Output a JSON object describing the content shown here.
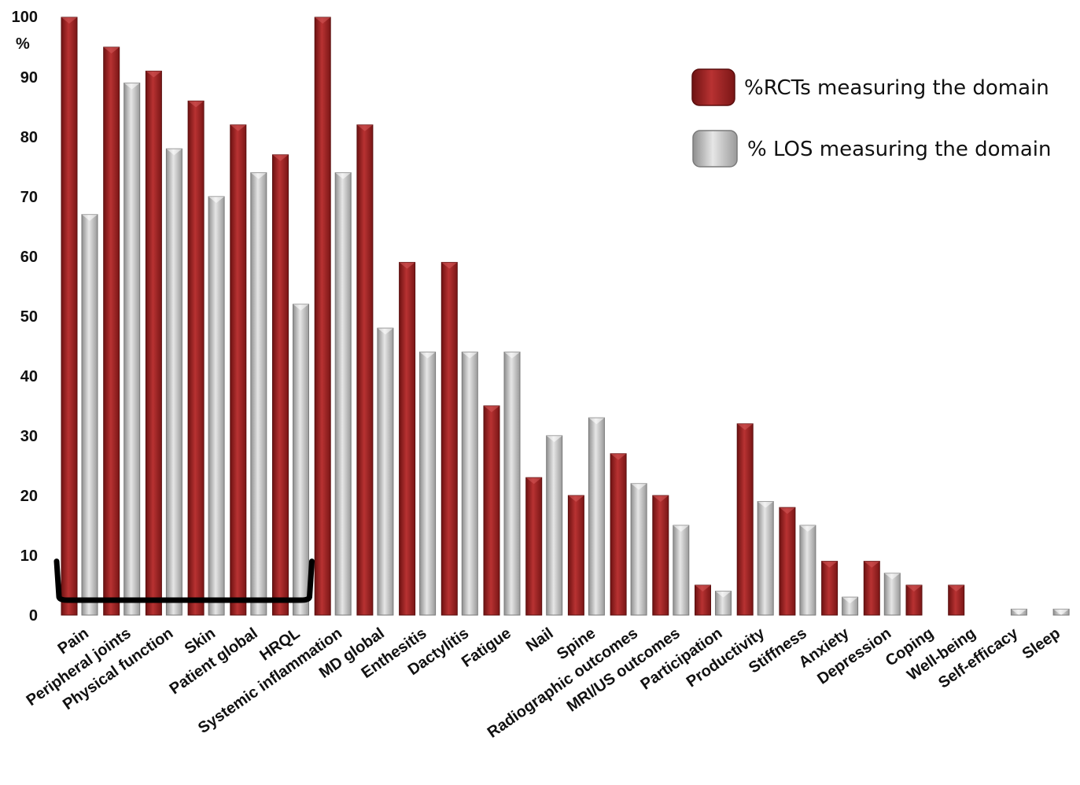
{
  "chart_data": {
    "type": "bar",
    "ylim": [
      0,
      100
    ],
    "yticks": [
      "0",
      "10",
      "20",
      "30",
      "40",
      "50",
      "60",
      "70",
      "80",
      "90",
      "100"
    ],
    "yunit": "%",
    "categories": [
      "Pain",
      "Peripheral joints",
      "Physical function",
      "Skin",
      "Patient global",
      "HRQL",
      "Systemic inflammation",
      "MD global",
      "Enthesitis",
      "Dactylitis",
      "Fatigue",
      "Nail",
      "Spine",
      "Radiographic outcomes",
      "MRI/US outcomes",
      "Participation",
      "Productivity",
      "Stiffness",
      "Anxiety",
      "Depression",
      "Coping",
      "Well-being",
      "Self-efficacy",
      "Sleep"
    ],
    "series": [
      {
        "name": "%RCTs measuring the domain",
        "color": "#a52a2a",
        "values": [
          100,
          95,
          91,
          86,
          82,
          77,
          100,
          82,
          59,
          59,
          35,
          23,
          20,
          27,
          20,
          5,
          32,
          18,
          9,
          9,
          5,
          5,
          0,
          0
        ]
      },
      {
        "name": "% LOS measuring the domain",
        "color": "#c8c8c8",
        "values": [
          67,
          89,
          78,
          70,
          74,
          52,
          74,
          48,
          44,
          44,
          44,
          30,
          33,
          22,
          15,
          4,
          19,
          15,
          3,
          7,
          0,
          0,
          1,
          1
        ]
      }
    ],
    "bracket_span": [
      "Pain",
      "HRQL"
    ],
    "grid": false,
    "legend_position": "top-right"
  }
}
